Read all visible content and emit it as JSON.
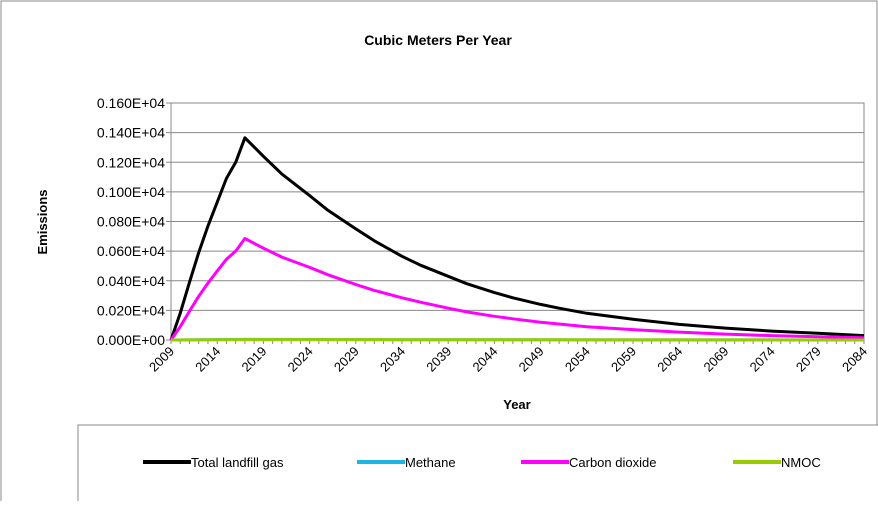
{
  "chart_data": {
    "type": "line",
    "title": "Cubic Meters Per Year",
    "xlabel": "Year",
    "ylabel": "Emissions",
    "xlim": [
      2009,
      2084
    ],
    "ylim": [
      0,
      1600
    ],
    "x_ticks": [
      "2009",
      "2014",
      "2019",
      "2024",
      "2029",
      "2034",
      "2039",
      "2044",
      "2049",
      "2054",
      "2059",
      "2064",
      "2069",
      "2074",
      "2079",
      "2084"
    ],
    "y_ticks": [
      "0.000E+00",
      "0.020E+04",
      "0.040E+04",
      "0.060E+04",
      "0.080E+04",
      "0.100E+04",
      "0.120E+04",
      "0.140E+04",
      "0.160E+04"
    ],
    "grid": true,
    "legend": "bottom",
    "series": [
      {
        "name": "Total landfill gas",
        "color": "#000000",
        "points": [
          [
            2009,
            0
          ],
          [
            2010,
            180
          ],
          [
            2011,
            390
          ],
          [
            2012,
            590
          ],
          [
            2013,
            770
          ],
          [
            2014,
            930
          ],
          [
            2015,
            1090
          ],
          [
            2016,
            1200
          ],
          [
            2017,
            1365
          ],
          [
            2019,
            1240
          ],
          [
            2021,
            1120
          ],
          [
            2024,
            975
          ],
          [
            2026,
            875
          ],
          [
            2029,
            750
          ],
          [
            2031,
            670
          ],
          [
            2034,
            565
          ],
          [
            2036,
            505
          ],
          [
            2039,
            430
          ],
          [
            2041,
            380
          ],
          [
            2044,
            320
          ],
          [
            2046,
            285
          ],
          [
            2049,
            240
          ],
          [
            2051,
            215
          ],
          [
            2054,
            180
          ],
          [
            2059,
            140
          ],
          [
            2064,
            105
          ],
          [
            2069,
            80
          ],
          [
            2074,
            60
          ],
          [
            2079,
            45
          ],
          [
            2084,
            30
          ]
        ]
      },
      {
        "name": "Methane",
        "color": "#1fb4e6",
        "points": [
          [
            2009,
            0
          ],
          [
            2017,
            4
          ],
          [
            2034,
            2
          ],
          [
            2084,
            0
          ]
        ]
      },
      {
        "name": "Carbon dioxide",
        "color": "#ff00ff",
        "points": [
          [
            2009,
            0
          ],
          [
            2010,
            90
          ],
          [
            2011,
            195
          ],
          [
            2012,
            295
          ],
          [
            2013,
            385
          ],
          [
            2014,
            465
          ],
          [
            2015,
            545
          ],
          [
            2016,
            600
          ],
          [
            2017,
            685
          ],
          [
            2019,
            620
          ],
          [
            2021,
            560
          ],
          [
            2024,
            490
          ],
          [
            2026,
            440
          ],
          [
            2029,
            375
          ],
          [
            2031,
            335
          ],
          [
            2034,
            285
          ],
          [
            2036,
            255
          ],
          [
            2039,
            215
          ],
          [
            2041,
            190
          ],
          [
            2044,
            160
          ],
          [
            2046,
            143
          ],
          [
            2049,
            120
          ],
          [
            2051,
            108
          ],
          [
            2054,
            90
          ],
          [
            2059,
            70
          ],
          [
            2064,
            53
          ],
          [
            2069,
            40
          ],
          [
            2074,
            30
          ],
          [
            2079,
            22
          ],
          [
            2084,
            15
          ]
        ]
      },
      {
        "name": "NMOC",
        "color": "#99cc00",
        "points": [
          [
            2009,
            0
          ],
          [
            2017,
            3
          ],
          [
            2034,
            2
          ],
          [
            2084,
            0
          ]
        ]
      }
    ]
  }
}
